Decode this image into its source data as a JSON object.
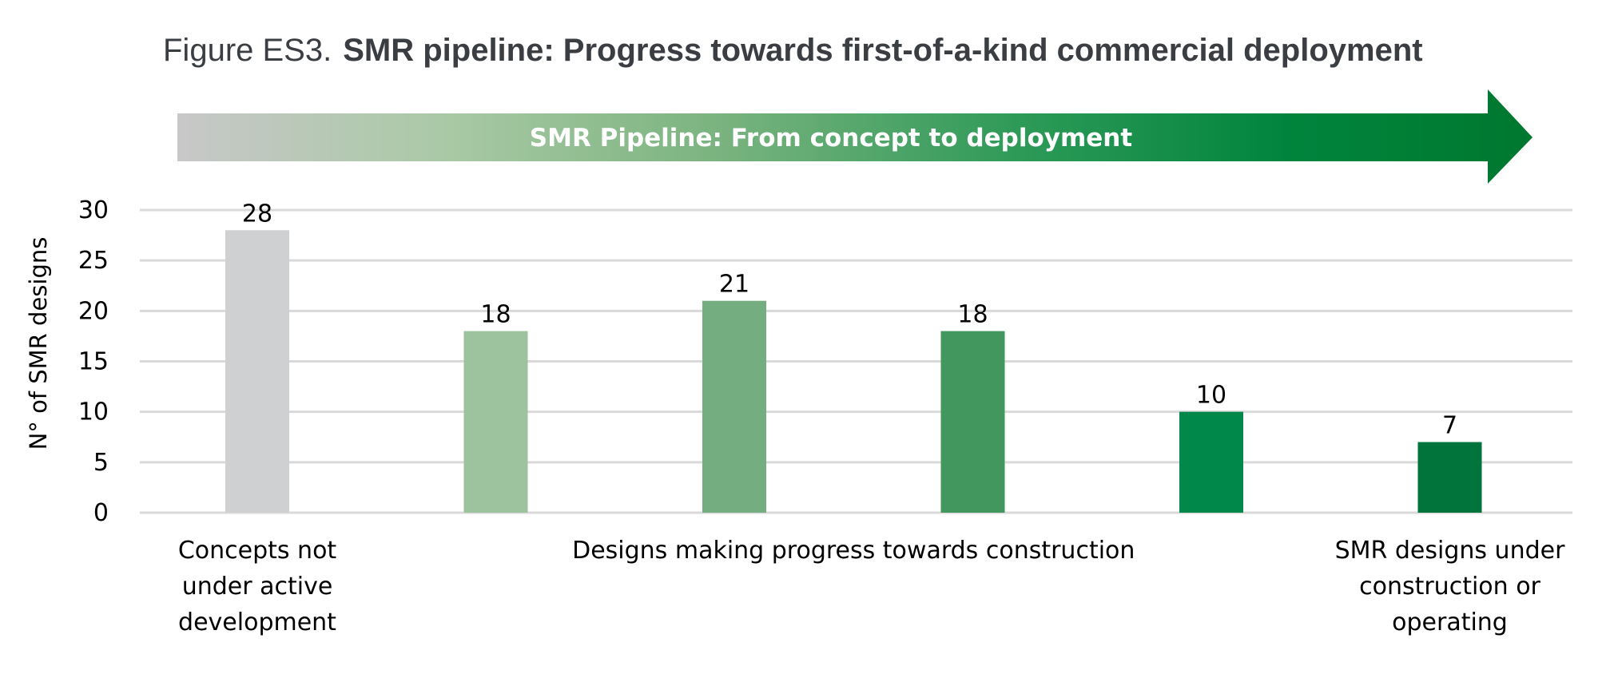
{
  "figure": {
    "prefix": "Figure ES3.",
    "title": "SMR pipeline: Progress towards first-of-a-kind commercial deployment"
  },
  "banner": {
    "text": "SMR Pipeline: From concept to deployment",
    "gradient": [
      "#c8c8c8",
      "#a9c9a5",
      "#7ab37f",
      "#2e9a58",
      "#00843d",
      "#00782f"
    ]
  },
  "chart_data": {
    "type": "bar",
    "ylabel": "N° of SMR designs",
    "ylim": [
      0,
      30
    ],
    "yticks": [
      0,
      5,
      10,
      15,
      20,
      25,
      30
    ],
    "grid": true,
    "values": [
      28,
      18,
      21,
      18,
      10,
      7
    ],
    "colors": [
      "#cfd0d2",
      "#9dc39e",
      "#74ad80",
      "#42975e",
      "#00874a",
      "#00743a"
    ],
    "groups": [
      {
        "lines": [
          "Concepts not",
          "under active",
          "development"
        ],
        "bars": [
          0
        ]
      },
      {
        "lines": [
          "Designs making progress towards construction"
        ],
        "bars": [
          1,
          2,
          3,
          4
        ]
      },
      {
        "lines": [
          "SMR designs under",
          "construction or",
          "operating"
        ],
        "bars": [
          5
        ]
      }
    ]
  }
}
